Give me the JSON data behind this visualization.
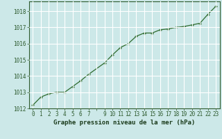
{
  "x": [
    0,
    1,
    2,
    3,
    4,
    5,
    6,
    7,
    9,
    10,
    11,
    12,
    13,
    14,
    15,
    16,
    17,
    18,
    "19",
    20,
    21,
    22,
    23
  ],
  "x_vals": [
    0,
    1,
    2,
    3,
    4,
    5,
    6,
    7,
    9,
    10,
    11,
    12,
    13,
    14,
    15,
    16,
    17,
    18,
    19,
    20,
    21,
    22,
    23
  ],
  "y": [
    1012.2,
    1012.7,
    1012.9,
    1013.0,
    1013.0,
    1013.35,
    1013.7,
    1014.1,
    1014.8,
    1015.3,
    1015.75,
    1016.0,
    1016.45,
    1016.65,
    1016.65,
    1016.85,
    1016.9,
    1017.0,
    1017.05,
    1017.15,
    1017.25,
    1017.8,
    1018.3
  ],
  "xlim": [
    -0.5,
    23.5
  ],
  "ylim": [
    1012,
    1018.6
  ],
  "yticks": [
    1012,
    1013,
    1014,
    1015,
    1016,
    1017,
    1018
  ],
  "xtick_positions": [
    0,
    1,
    2,
    3,
    4,
    5,
    6,
    7,
    8,
    9,
    10,
    11,
    12,
    13,
    14,
    15,
    16,
    17,
    18,
    19,
    20,
    21,
    22,
    23
  ],
  "xtick_labels": [
    "0",
    "1",
    "2",
    "3",
    "4",
    "5",
    "6",
    "7",
    "",
    "9",
    "10",
    "11",
    "12",
    "13",
    "14",
    "15",
    "16",
    "17",
    "18",
    "19",
    "20",
    "21",
    "22",
    "23"
  ],
  "xlabel": "Graphe pression niveau de la mer (hPa)",
  "line_color": "#2d6a2d",
  "marker": "+",
  "bg_color": "#cce8e8",
  "grid_color": "#aad4d4",
  "text_color": "#2d5a2d",
  "label_color": "#1a3a1a"
}
